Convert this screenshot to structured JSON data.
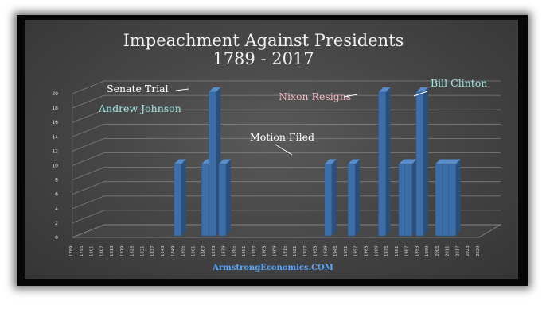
{
  "chart_data": {
    "type": "bar",
    "title_line1": "Impeachment Against Presidents",
    "title_line2": "1789 - 2017",
    "xlabel": "",
    "ylabel": "",
    "ylim": [
      0,
      20
    ],
    "y_ticks": [
      0,
      2,
      4,
      6,
      8,
      10,
      12,
      14,
      16,
      18,
      20
    ],
    "grid": true,
    "categories": [
      "1789",
      "1795",
      "1801",
      "1807",
      "1813",
      "1819",
      "1825",
      "1831",
      "1837",
      "1843",
      "1849",
      "1855",
      "1861",
      "1867",
      "1873",
      "1879",
      "1885",
      "1891",
      "1897",
      "1903",
      "1909",
      "1915",
      "1921",
      "1927",
      "1933",
      "1939",
      "1945",
      "1951",
      "1957",
      "1963",
      "1969",
      "1975",
      "1981",
      "1987",
      "1993",
      "1999",
      "2005",
      "2011",
      "2017",
      "2023",
      "2029"
    ],
    "bars": [
      {
        "index": 10.0,
        "value": 10
      },
      {
        "index": 12.7,
        "value": 10
      },
      {
        "index": 13.4,
        "value": 20
      },
      {
        "index": 14.4,
        "value": 10
      },
      {
        "index": 24.8,
        "value": 10
      },
      {
        "index": 27.1,
        "value": 10
      },
      {
        "index": 30.1,
        "value": 20
      },
      {
        "index": 32.1,
        "value": 10
      },
      {
        "index": 32.7,
        "value": 10
      },
      {
        "index": 33.8,
        "value": 20
      },
      {
        "index": 35.7,
        "value": 10
      },
      {
        "index": 36.4,
        "value": 10
      },
      {
        "index": 37.0,
        "value": 10
      }
    ],
    "annotations": [
      {
        "text": "Senate Trial",
        "color": "#ffffff"
      },
      {
        "text": "Andrew Johnson",
        "color": "#9fe6e6"
      },
      {
        "text": "Motion Filed",
        "color": "#ffffff"
      },
      {
        "text": "Nixon Resigns",
        "color": "#f4b6c2"
      },
      {
        "text": "Bill Clinton",
        "color": "#9fe6e6"
      }
    ],
    "watermark": "ArmstrongEconomics.COM",
    "colors": {
      "bar_front": "#3d6ea8",
      "bar_side": "#2a4f7c",
      "grid": "#8a8a8a",
      "background": "#474747",
      "frame": "#080808",
      "watermark": "#5aa6ff"
    }
  }
}
